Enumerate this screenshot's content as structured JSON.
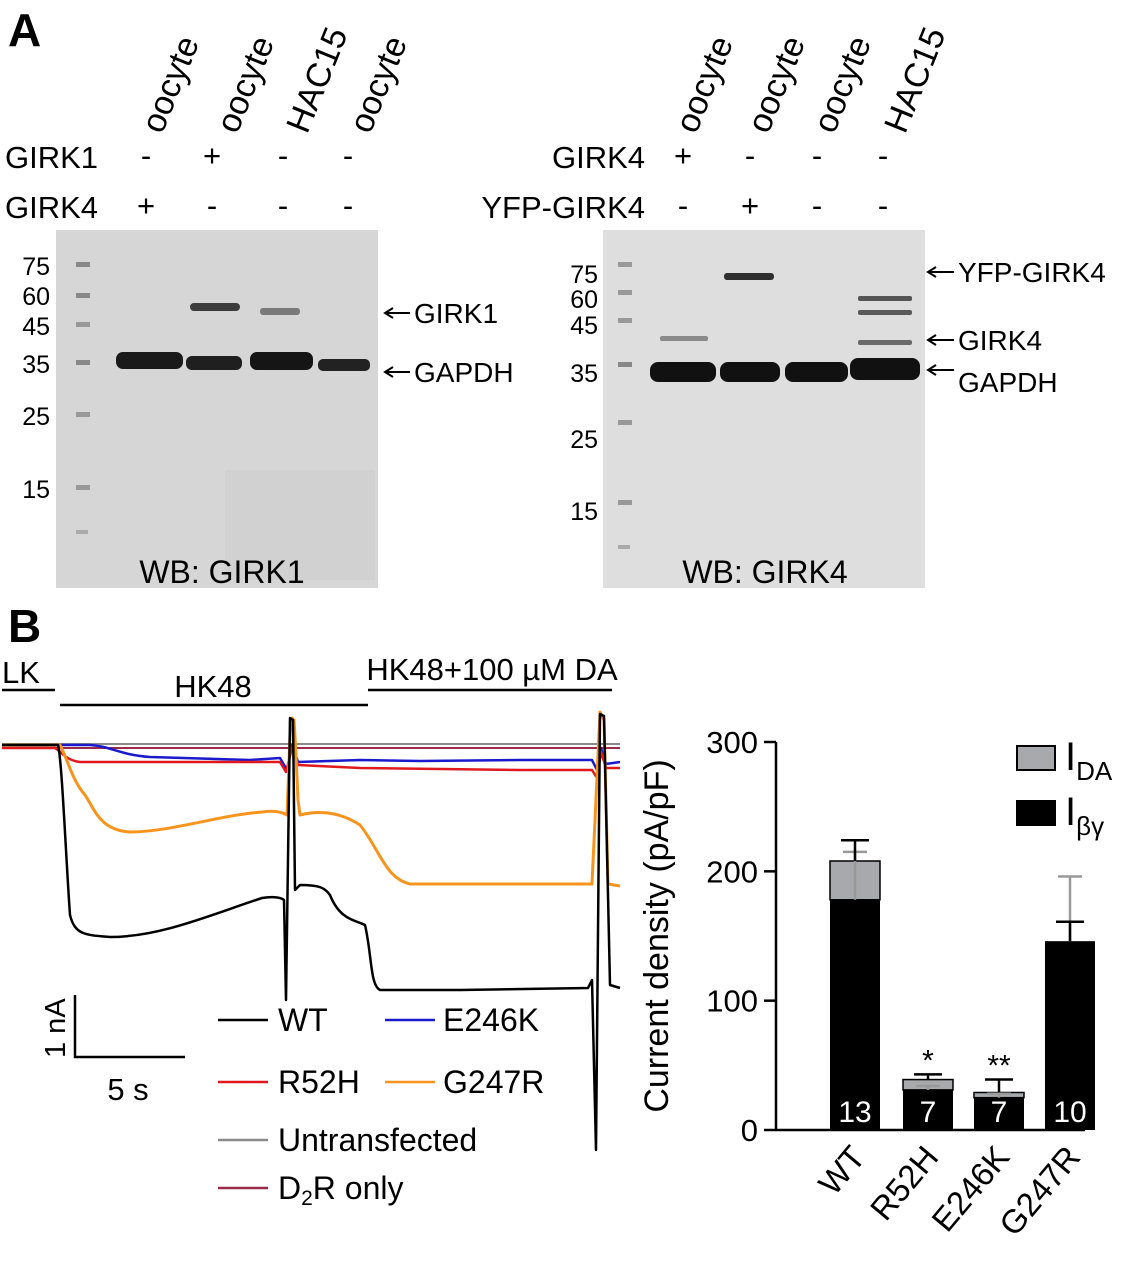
{
  "panelA": {
    "label": "A",
    "left_blot": {
      "lane_labels": [
        "oocyte",
        "oocyte",
        "HAC15",
        "oocyte"
      ],
      "rows": [
        {
          "name": "GIRK1",
          "signs": [
            "-",
            "+",
            "-",
            "-"
          ]
        },
        {
          "name": "GIRK4",
          "signs": [
            "+",
            "-",
            "-",
            "-"
          ]
        }
      ],
      "markers": [
        "75",
        "60",
        "45",
        "35",
        "25",
        "15"
      ],
      "band_labels": [
        "GIRK1",
        "GAPDH"
      ],
      "wb_label": "WB: GIRK1"
    },
    "right_blot": {
      "lane_labels": [
        "oocyte",
        "oocyte",
        "oocyte",
        "HAC15"
      ],
      "rows": [
        {
          "name": "GIRK4",
          "signs": [
            "+",
            "-",
            "-",
            "-"
          ]
        },
        {
          "name": "YFP-GIRK4",
          "signs": [
            "-",
            "+",
            "-",
            "-"
          ]
        }
      ],
      "markers": [
        "75",
        "60",
        "45",
        "35",
        "25",
        "15"
      ],
      "band_labels": [
        "YFP-GIRK4",
        "GIRK4",
        "GAPDH"
      ],
      "wb_label": "WB: GIRK4"
    }
  },
  "panelB": {
    "label": "B",
    "solutions": [
      "LK",
      "HK48",
      "HK48+100 µM DA"
    ],
    "scale_current": "1 nA",
    "scale_time": "5 s",
    "legend": [
      {
        "name": "WT",
        "color": "#000000"
      },
      {
        "name": "E246K",
        "color": "#1a1acc"
      },
      {
        "name": "R52H",
        "color": "#e0191e"
      },
      {
        "name": "G247R",
        "color": "#f7941d"
      },
      {
        "name": "Untransfected",
        "color": "#8a8a8a"
      },
      {
        "name": "D2R only",
        "color": "#9c2a4a"
      }
    ]
  },
  "chart_data": {
    "type": "bar",
    "categories": [
      "WT",
      "R52H",
      "E246K",
      "G247R"
    ],
    "series": [
      {
        "name": "Iβγ",
        "color": "#000000",
        "values": [
          178,
          31,
          25,
          146
        ]
      },
      {
        "name": "IDA",
        "color": "#a7a9ac",
        "values": [
          30,
          8,
          4,
          0
        ]
      }
    ],
    "error_bars_beta_gamma": [
      37,
      3,
      3,
      50
    ],
    "error_bars_total": [
      16,
      4,
      10,
      15
    ],
    "ylabel": "Current density (pA/pF)",
    "yticks": [
      0,
      100,
      200,
      300
    ],
    "ylim": [
      0,
      300
    ],
    "n_labels": [
      "13",
      "7",
      "7",
      "10"
    ],
    "significance": [
      "",
      "*",
      "**",
      ""
    ],
    "legend_items": [
      {
        "main": "I",
        "sub": "DA"
      },
      {
        "main": "I",
        "sub": "βγ"
      }
    ],
    "legend_position": "top-right"
  }
}
